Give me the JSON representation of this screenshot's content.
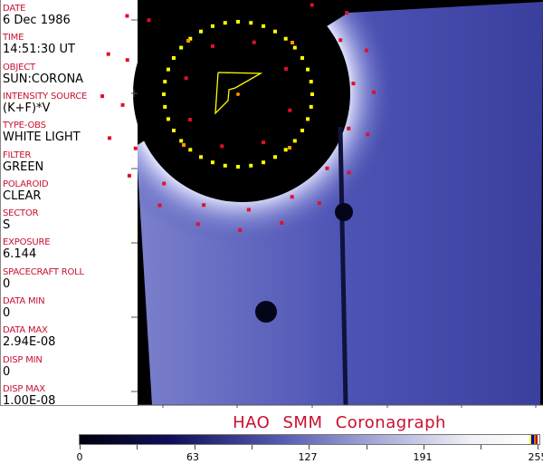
{
  "header_fields": [
    {
      "label": "DATE",
      "value": "6 Dec 1986"
    },
    {
      "label": "TIME",
      "value": "14:51:30 UT"
    },
    {
      "label": "OBJECT",
      "value": "SUN:CORONA"
    },
    {
      "label": "INTENSITY SOURCE",
      "value": "(K+F)*V"
    },
    {
      "label": "TYPE-OBS",
      "value": "WHITE LIGHT"
    },
    {
      "label": "FILTER",
      "value": "GREEN"
    },
    {
      "label": "POLAROID",
      "value": "CLEAR"
    },
    {
      "label": "SECTOR",
      "value": "S"
    },
    {
      "label": "EXPOSURE",
      "value": "6.144"
    },
    {
      "label": "SPACECRAFT ROLL",
      "value": "0"
    },
    {
      "label": "DATA MIN",
      "value": "0"
    },
    {
      "label": "DATA MAX",
      "value": "2.94E-08"
    },
    {
      "label": "DISP MIN",
      "value": "0"
    },
    {
      "label": "DISP MAX",
      "value": "1.00E-08"
    }
  ],
  "title": "HAO  SMM  Coronagraph",
  "colorbar": {
    "ticks": [
      "0",
      "63",
      "127",
      "191",
      "255"
    ],
    "min": 0,
    "max": 255,
    "colors": {
      "low": "#000010",
      "high": "#ffffff",
      "end_bands": [
        "#ffff00",
        "#0000c0",
        "#c08000",
        "#c00000"
      ]
    }
  },
  "colors": {
    "label": "#c8102e",
    "overlay_yellow": "#ffff00",
    "overlay_red": "#e0102a",
    "coronal_blue": "#4a4fb0"
  }
}
